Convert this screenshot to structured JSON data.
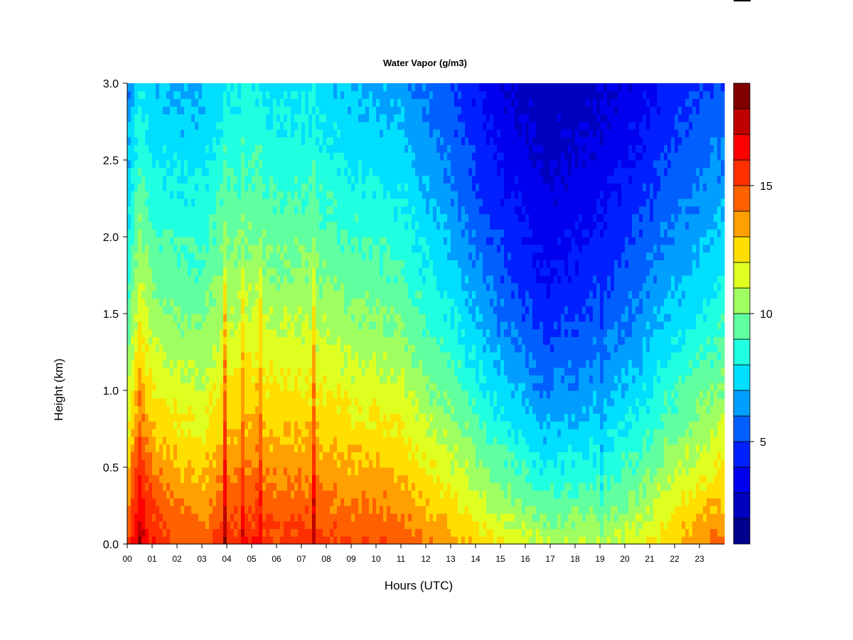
{
  "chart_data": {
    "type": "heatmap",
    "title": "Water Vapor (g/m3)",
    "xlabel": "Hours (UTC)",
    "ylabel": "Height (km)",
    "xlim": [
      0,
      24
    ],
    "ylim": [
      0,
      3
    ],
    "x_tick_labels": [
      "00",
      "01",
      "02",
      "03",
      "04",
      "05",
      "06",
      "07",
      "08",
      "09",
      "10",
      "11",
      "12",
      "13",
      "14",
      "15",
      "16",
      "17",
      "18",
      "19",
      "20",
      "21",
      "22",
      "23"
    ],
    "y_tick_labels": [
      "0.0",
      "0.5",
      "1.0",
      "1.5",
      "2.0",
      "2.5",
      "3.0"
    ],
    "colorbar": {
      "range": [
        1,
        19
      ],
      "levels": [
        1,
        2,
        3,
        4,
        5,
        6,
        7,
        8,
        9,
        10,
        11,
        12,
        13,
        14,
        15,
        16,
        17,
        18,
        19
      ],
      "colors": [
        "#00008f",
        "#0000bf",
        "#0000ef",
        "#0020ff",
        "#0060ff",
        "#009fff",
        "#00dfff",
        "#20ffdf",
        "#60ff9f",
        "#9fff60",
        "#dfff20",
        "#ffdf00",
        "#ffa000",
        "#ff6000",
        "#ff3000",
        "#ff0000",
        "#c00000",
        "#800000"
      ],
      "tick_labels": [
        "5",
        "10",
        "15"
      ]
    },
    "humidity_profile_hours": [
      0,
      0.5,
      1,
      2,
      3,
      4,
      5,
      6,
      7,
      8,
      9,
      10,
      11,
      12,
      13,
      14,
      15,
      16,
      16.8,
      17.5,
      18.5,
      19.5,
      20.5,
      21.5,
      22.5,
      24
    ],
    "surface_value": [
      15,
      18,
      16,
      15,
      14.5,
      15.5,
      15.8,
      15.3,
      15.5,
      15.3,
      15,
      15,
      14.8,
      14,
      13.5,
      12.8,
      12,
      11.5,
      11,
      11,
      11,
      11,
      11.5,
      12.5,
      13.5,
      14.5
    ],
    "scale_height_km": [
      1.3,
      1.5,
      1.5,
      1.55,
      1.6,
      1.8,
      1.8,
      1.75,
      1.75,
      1.7,
      1.6,
      1.55,
      1.5,
      1.35,
      1.2,
      1.0,
      0.85,
      0.75,
      0.65,
      0.7,
      0.75,
      0.85,
      0.95,
      1.05,
      1.1,
      1.2
    ],
    "intrusions": [
      {
        "hour": 3.9,
        "width": 0.12,
        "strength": 3.5
      },
      {
        "hour": 4.6,
        "width": 0.08,
        "strength": 3
      },
      {
        "hour": 5.3,
        "width": 0.1,
        "strength": 3.5
      },
      {
        "hour": 7.5,
        "width": 0.1,
        "strength": 2.5
      },
      {
        "hour": 19.1,
        "width": 0.04,
        "strength": -4
      }
    ]
  }
}
